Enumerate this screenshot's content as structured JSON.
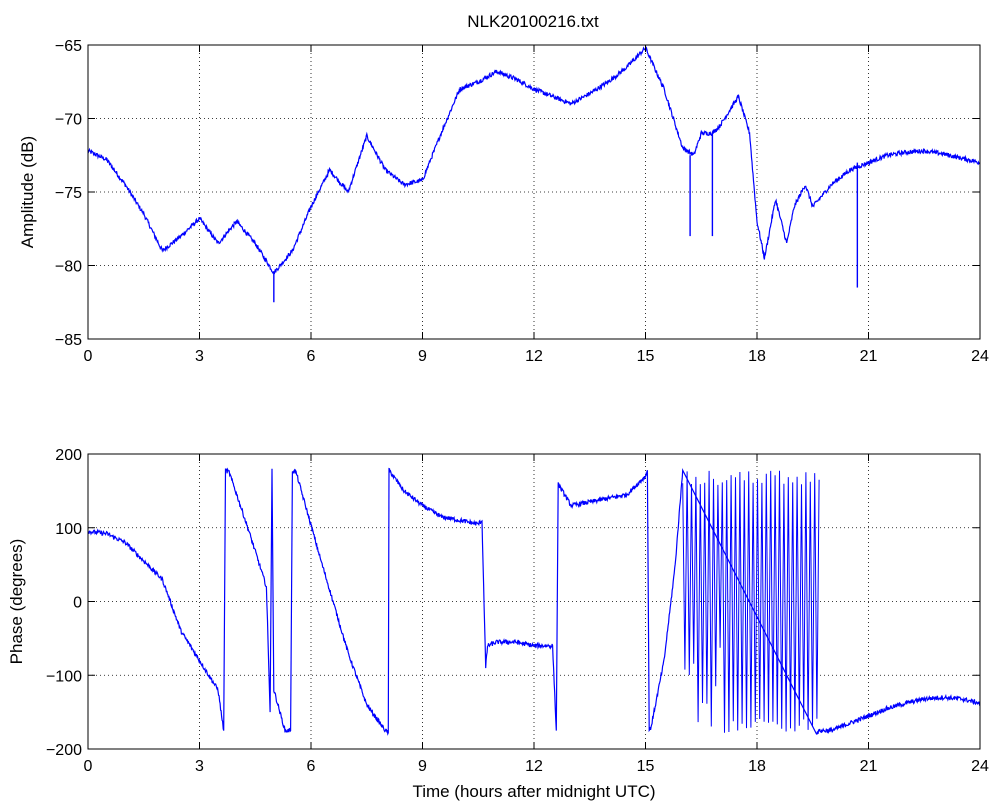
{
  "figure": {
    "title": "NLK20100216.txt"
  },
  "colors": {
    "line": "#0000ff",
    "axes": "#000000",
    "grid": "#000000",
    "background": "#ffffff"
  },
  "chart_data": [
    {
      "type": "line",
      "title": "NLK20100216.txt",
      "xlabel": "",
      "ylabel": "Amplitude (dB)",
      "xlim": [
        0,
        24
      ],
      "ylim": [
        -85,
        -65
      ],
      "xticks": [
        "0",
        "3",
        "6",
        "9",
        "12",
        "15",
        "18",
        "21",
        "24"
      ],
      "yticks": [
        "-85",
        "-80",
        "-75",
        "-70",
        "-65"
      ],
      "grid": true,
      "x": [
        0,
        0.5,
        1,
        1.5,
        2,
        2.5,
        3,
        3.5,
        4,
        4.5,
        5,
        5.5,
        6,
        6.5,
        7,
        7.5,
        8,
        8.5,
        9,
        9.5,
        10,
        10.5,
        11,
        11.5,
        12,
        12.5,
        13,
        13.5,
        14,
        14.5,
        15,
        15.5,
        16,
        16.3,
        16.5,
        16.8,
        17,
        17.5,
        17.8,
        18,
        18.2,
        18.5,
        18.8,
        19,
        19.3,
        19.5,
        20,
        20.5,
        21,
        21.5,
        22,
        22.5,
        23,
        23.5,
        24
      ],
      "y": [
        -72.2,
        -72.8,
        -74.5,
        -76.5,
        -79,
        -78,
        -76.8,
        -78.5,
        -77,
        -78.5,
        -80.5,
        -79,
        -76,
        -73.5,
        -75,
        -71.2,
        -73.5,
        -74.5,
        -74.2,
        -71,
        -68,
        -67.5,
        -66.8,
        -67.3,
        -68,
        -68.5,
        -69,
        -68.3,
        -67.5,
        -66.5,
        -65.2,
        -68,
        -72,
        -72.5,
        -71,
        -71,
        -70.5,
        -68.5,
        -71,
        -77,
        -79.5,
        -75.5,
        -78.5,
        -76,
        -74.5,
        -76,
        -74.5,
        -73.5,
        -73,
        -72.5,
        -72.3,
        -72.2,
        -72.4,
        -72.7,
        -73
      ],
      "spikes": [
        {
          "x": 5.0,
          "y": -82.5
        },
        {
          "x": 16.2,
          "y": -78
        },
        {
          "x": 16.8,
          "y": -78
        },
        {
          "x": 20.7,
          "y": -81.5
        }
      ]
    },
    {
      "type": "line",
      "title": "",
      "xlabel": "Time (hours after midnight UTC)",
      "ylabel": "Phase (degrees)",
      "xlim": [
        0,
        24
      ],
      "ylim": [
        -200,
        200
      ],
      "xticks": [
        "0",
        "3",
        "6",
        "9",
        "12",
        "15",
        "18",
        "21",
        "24"
      ],
      "yticks": [
        "-200",
        "-100",
        "0",
        "100",
        "200"
      ],
      "grid": true,
      "x": [
        0,
        0.5,
        1,
        1.5,
        2,
        2.5,
        3,
        3.5,
        3.65,
        3.7,
        3.8,
        4.3,
        4.8,
        4.9,
        4.95,
        5.0,
        5.3,
        5.45,
        5.5,
        5.6,
        6.3,
        7.0,
        7.5,
        8.0,
        8.08,
        8.1,
        8.5,
        9.0,
        9.5,
        10.0,
        10.5,
        10.6,
        10.7,
        10.75,
        11.0,
        11.5,
        12.0,
        12.5,
        12.6,
        12.65,
        12.7,
        13.0,
        13.5,
        14.0,
        14.5,
        15.0,
        15.05,
        15.1,
        15.15,
        15.5,
        15.8,
        16.0,
        19.6,
        19.7,
        20.0,
        20.5,
        21.0,
        21.5,
        22.0,
        22.5,
        23.0,
        23.5,
        24.0
      ],
      "y": [
        95,
        92,
        80,
        55,
        30,
        -40,
        -80,
        -120,
        -175,
        178,
        175,
        100,
        20,
        -150,
        180,
        -120,
        -175,
        -175,
        178,
        175,
        50,
        -70,
        -140,
        -175,
        -178,
        178,
        150,
        130,
        115,
        110,
        105,
        110,
        -90,
        -60,
        -55,
        -55,
        -60,
        -60,
        -175,
        160,
        155,
        130,
        135,
        140,
        145,
        170,
        178,
        -175,
        -170,
        -80,
        50,
        178,
        -178,
        -175,
        -175,
        -165,
        -155,
        -145,
        -138,
        -132,
        -130,
        -132,
        -138
      ],
      "oscillation": {
        "x_start": 16.0,
        "x_end": 19.7,
        "min": -178,
        "max": 178
      }
    }
  ]
}
